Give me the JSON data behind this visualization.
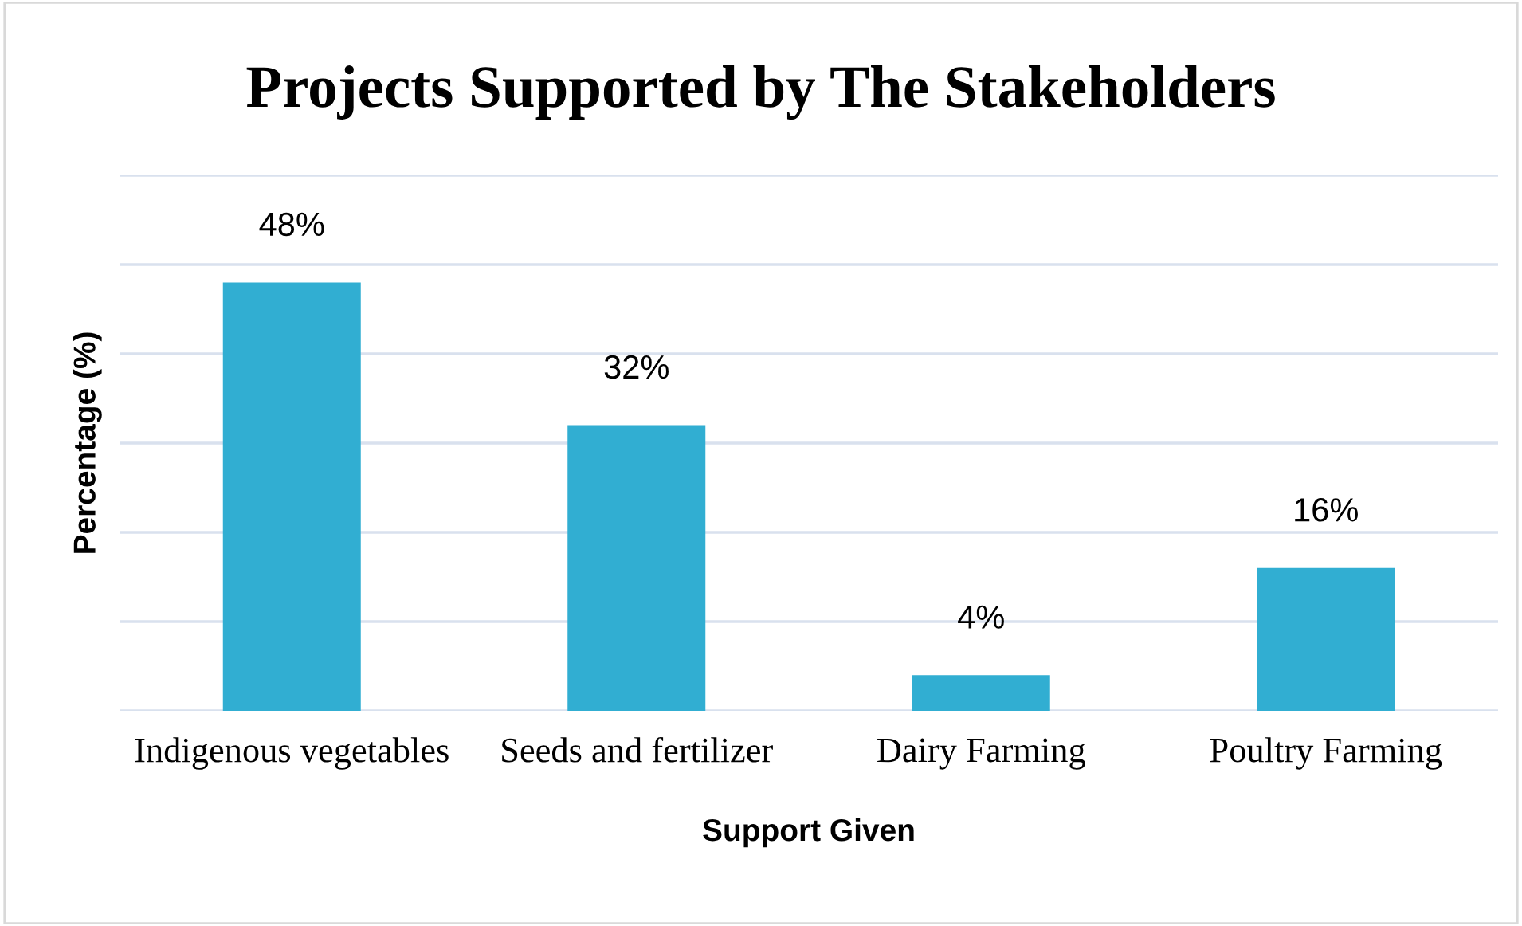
{
  "chart_data": {
    "type": "bar",
    "title": "Projects Supported by The Stakeholders",
    "xlabel": "Support Given",
    "ylabel": "Percentage (%)",
    "categories": [
      "Indigenous vegetables",
      "Seeds and fertilizer",
      "Dairy Farming",
      "Poultry Farming"
    ],
    "values": [
      48,
      32,
      4,
      16
    ],
    "value_labels": [
      "48%",
      "32%",
      "4%",
      "16%"
    ],
    "color": "#31aed2",
    "ylim": [
      0,
      60
    ],
    "yticks": [
      {
        "value": 0,
        "label": null
      },
      {
        "value": 10,
        "label": null
      },
      {
        "value": 20,
        "label": null
      },
      {
        "value": 30,
        "label": null
      },
      {
        "value": 40,
        "label": null
      },
      {
        "value": 50,
        "label": null
      },
      {
        "value": 60,
        "label": null
      }
    ],
    "tick_labels": "x",
    "grid": "y",
    "legend": false
  }
}
